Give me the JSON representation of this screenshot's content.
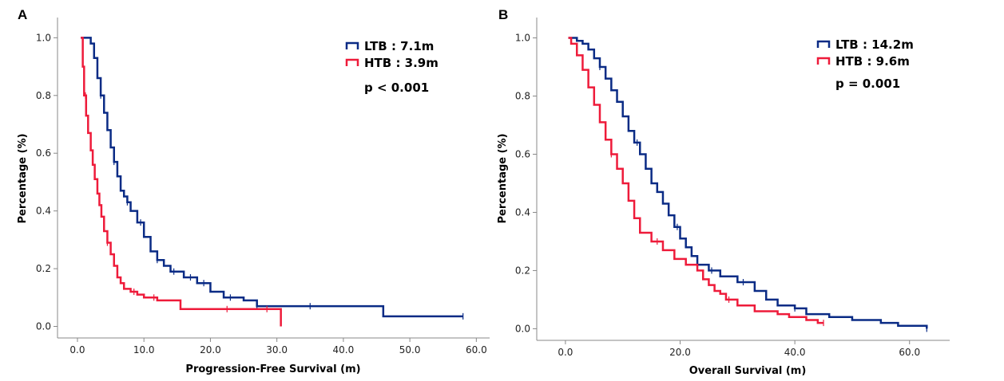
{
  "chart_data": [
    {
      "panel": "A",
      "type": "line",
      "title": "",
      "xlabel": "Progression-Free  Survival (m)",
      "ylabel": "Percentage (%)",
      "xlim": [
        -3,
        62
      ],
      "ylim": [
        -0.04,
        1.07
      ],
      "xticks": [
        0,
        10,
        20,
        30,
        40,
        50,
        60
      ],
      "xtick_labels": [
        "0.0",
        "10.0",
        "20.0",
        "30.0",
        "40.0",
        "50.0",
        "60.0"
      ],
      "yticks": [
        0,
        0.2,
        0.4,
        0.6,
        0.8,
        1.0
      ],
      "ytick_labels": [
        "0.0",
        "0.2",
        "0.4",
        "0.6",
        "0.8",
        "1.0"
      ],
      "legend_position": "top-right",
      "annotation": "p < 0.001",
      "series": [
        {
          "name": "LTB : 7.1m",
          "color": "#0a2b85",
          "step_x": [
            0.5,
            2.0,
            2.5,
            3.0,
            3.5,
            4.0,
            4.5,
            5.0,
            5.5,
            6.0,
            6.5,
            7.0,
            7.5,
            8.0,
            9.0,
            10.0,
            11.0,
            12.0,
            13.0,
            14.0,
            16.0,
            18.0,
            20.0,
            22.0,
            25.0,
            27.0,
            30.0,
            35.0,
            46.0,
            58.0
          ],
          "step_y": [
            1.0,
            0.98,
            0.93,
            0.86,
            0.8,
            0.74,
            0.68,
            0.62,
            0.57,
            0.52,
            0.47,
            0.45,
            0.43,
            0.4,
            0.36,
            0.31,
            0.26,
            0.23,
            0.21,
            0.19,
            0.17,
            0.15,
            0.12,
            0.1,
            0.09,
            0.07,
            0.07,
            0.07,
            0.035,
            0.035
          ],
          "censor_x": [
            3.5,
            5.5,
            7.5,
            9.5,
            12.0,
            14.5,
            17.0,
            19.0,
            23.0,
            27.0,
            35.0,
            58.0
          ]
        },
        {
          "name": "HTB : 3.9m",
          "color": "#ee1b3a",
          "step_x": [
            0.5,
            0.8,
            1.0,
            1.3,
            1.6,
            2.0,
            2.3,
            2.6,
            3.0,
            3.3,
            3.6,
            4.0,
            4.5,
            5.0,
            5.5,
            6.0,
            6.5,
            7.0,
            8.0,
            9.0,
            10.0,
            12.0,
            15.5,
            30.5,
            30.6
          ],
          "step_y": [
            1.0,
            0.9,
            0.8,
            0.73,
            0.67,
            0.61,
            0.56,
            0.51,
            0.46,
            0.42,
            0.38,
            0.33,
            0.29,
            0.25,
            0.21,
            0.17,
            0.15,
            0.13,
            0.12,
            0.11,
            0.1,
            0.09,
            0.06,
            0.06,
            0.0
          ],
          "censor_x": [
            1.2,
            4.5,
            8.5,
            11.5,
            22.5,
            28.5
          ]
        }
      ]
    },
    {
      "panel": "B",
      "type": "line",
      "title": "",
      "xlabel": "Overall Survival (m)",
      "ylabel": "Percentage (%)",
      "xlim": [
        -5,
        67
      ],
      "ylim": [
        -0.04,
        1.07
      ],
      "xticks": [
        0,
        20,
        40,
        60
      ],
      "xtick_labels": [
        "0.0",
        "20.0",
        "40.0",
        "60.0"
      ],
      "yticks": [
        0,
        0.2,
        0.4,
        0.6,
        0.8,
        1.0
      ],
      "ytick_labels": [
        "0.0",
        "0.2",
        "0.4",
        "0.6",
        "0.8",
        "1.0"
      ],
      "legend_position": "top-right",
      "annotation": "p = 0.001",
      "series": [
        {
          "name": "LTB : 14.2m",
          "color": "#0a2b85",
          "step_x": [
            0.5,
            2.0,
            3.0,
            4.0,
            5.0,
            6.0,
            7.0,
            8.0,
            9.0,
            10.0,
            11.0,
            12.0,
            13.0,
            14.0,
            15.0,
            16.0,
            17.0,
            18.0,
            19.0,
            20.0,
            21.0,
            22.0,
            23.0,
            25.0,
            27.0,
            30.0,
            33.0,
            35.0,
            37.0,
            40.0,
            42.0,
            46.0,
            50.0,
            55.0,
            58.0,
            60.0,
            63.0
          ],
          "step_y": [
            1.0,
            0.99,
            0.98,
            0.96,
            0.93,
            0.9,
            0.86,
            0.82,
            0.78,
            0.73,
            0.68,
            0.64,
            0.6,
            0.55,
            0.5,
            0.47,
            0.43,
            0.39,
            0.35,
            0.31,
            0.28,
            0.25,
            0.22,
            0.2,
            0.18,
            0.16,
            0.13,
            0.1,
            0.08,
            0.07,
            0.05,
            0.04,
            0.03,
            0.02,
            0.01,
            0.01,
            0.0
          ],
          "censor_x": [
            6.0,
            12.5,
            19.5,
            25.5,
            31.0,
            40.0,
            63.0
          ]
        },
        {
          "name": "HTB : 9.6m",
          "color": "#ee1b3a",
          "step_x": [
            0.5,
            1.0,
            2.0,
            3.0,
            4.0,
            5.0,
            6.0,
            7.0,
            8.0,
            9.0,
            10.0,
            11.0,
            12.0,
            13.0,
            15.0,
            17.0,
            19.0,
            21.0,
            23.0,
            24.0,
            25.0,
            26.0,
            27.0,
            28.0,
            30.0,
            33.0,
            37.0,
            39.0,
            42.0,
            44.0,
            45.0
          ],
          "step_y": [
            1.0,
            0.98,
            0.94,
            0.89,
            0.83,
            0.77,
            0.71,
            0.65,
            0.6,
            0.55,
            0.5,
            0.44,
            0.38,
            0.33,
            0.3,
            0.27,
            0.24,
            0.22,
            0.2,
            0.17,
            0.15,
            0.13,
            0.12,
            0.1,
            0.08,
            0.06,
            0.05,
            0.04,
            0.03,
            0.02,
            0.02
          ],
          "censor_x": [
            8.0,
            16.0,
            28.5,
            45.0
          ]
        }
      ]
    }
  ]
}
